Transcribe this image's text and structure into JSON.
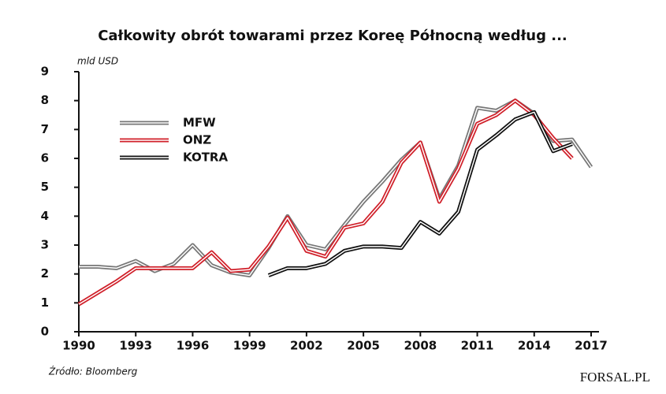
{
  "chart_data": {
    "type": "line",
    "title": "Całkowity obrót towarami przez Koreę Północną według ...",
    "y_label": "mld USD",
    "source": "Źródło: Bloomberg",
    "logo": "FORSAL.PL",
    "x": [
      1990,
      1991,
      1992,
      1993,
      1994,
      1995,
      1996,
      1997,
      1998,
      1999,
      2000,
      2001,
      2002,
      2003,
      2004,
      2005,
      2006,
      2007,
      2008,
      2009,
      2010,
      2011,
      2012,
      2013,
      2014,
      2015,
      2016,
      2017
    ],
    "series": [
      {
        "name": "MFW",
        "color": "#777777",
        "values": [
          2.25,
          2.25,
          2.2,
          2.45,
          2.1,
          2.35,
          3.0,
          2.3,
          2.05,
          1.95,
          2.9,
          4.0,
          3.0,
          2.85,
          3.7,
          4.5,
          5.2,
          5.95,
          6.55,
          4.6,
          5.75,
          7.75,
          7.65,
          8.0,
          7.55,
          6.6,
          6.65,
          5.7
        ]
      },
      {
        "name": "ONZ",
        "color": "#d0202a",
        "values": [
          0.95,
          1.35,
          1.75,
          2.2,
          2.2,
          2.2,
          2.2,
          2.75,
          2.1,
          2.15,
          2.95,
          3.95,
          2.8,
          2.6,
          3.6,
          3.75,
          4.5,
          5.85,
          6.55,
          4.5,
          5.65,
          7.2,
          7.5,
          8.0,
          7.5,
          6.7,
          6.0,
          null
        ]
      },
      {
        "name": "KOTRA",
        "color": "#111111",
        "values": [
          null,
          null,
          null,
          null,
          null,
          null,
          null,
          null,
          null,
          null,
          1.95,
          2.2,
          2.2,
          2.35,
          2.8,
          2.95,
          2.95,
          2.9,
          3.8,
          3.4,
          4.15,
          6.3,
          6.8,
          7.35,
          7.6,
          6.25,
          6.5,
          null
        ]
      }
    ],
    "xlim": [
      1990,
      2017
    ],
    "xticks": [
      1990,
      1993,
      1996,
      1999,
      2002,
      2005,
      2008,
      2011,
      2014,
      2017
    ],
    "ylim": [
      0,
      9
    ],
    "yticks": [
      0,
      1,
      2,
      3,
      4,
      5,
      6,
      7,
      8,
      9
    ],
    "legend": "top-left"
  }
}
